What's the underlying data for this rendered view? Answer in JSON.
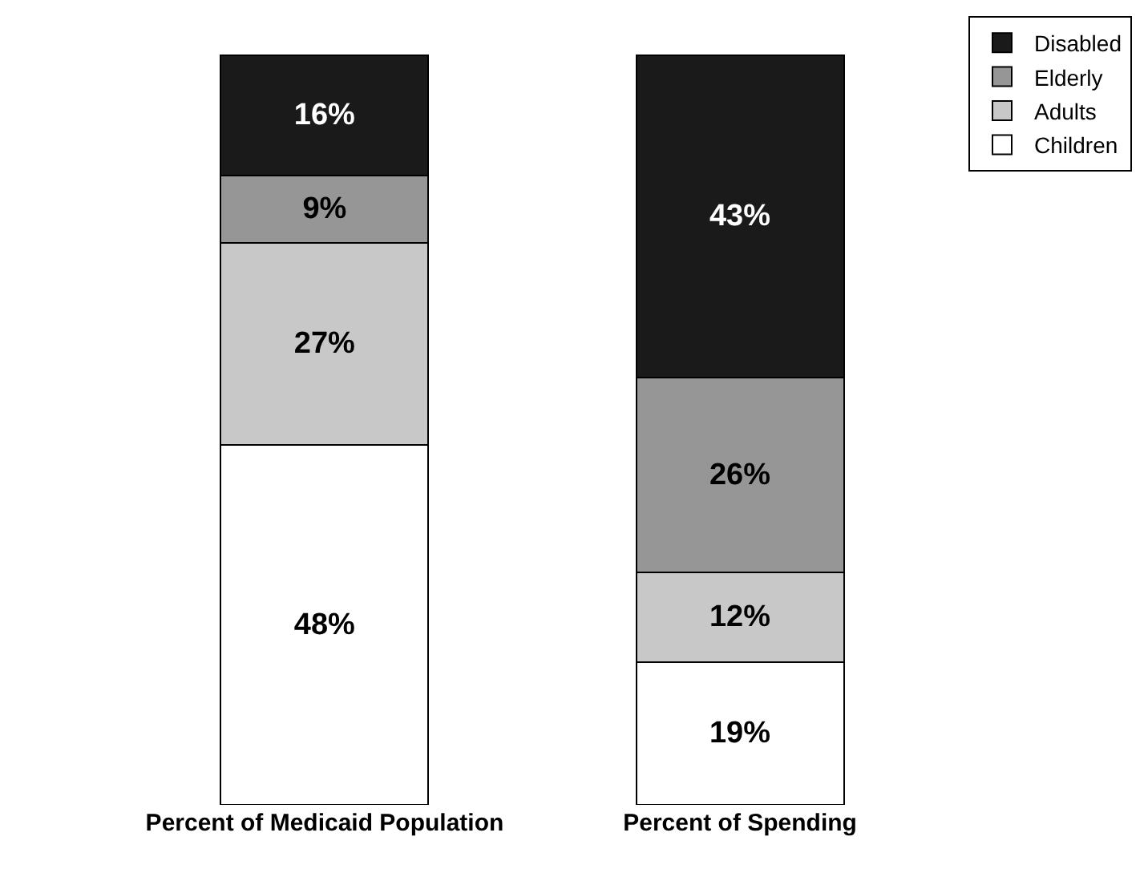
{
  "chart_data": {
    "type": "bar",
    "stacked": true,
    "legend": "top right",
    "categories": [
      "Percent of Medicaid Population",
      "Percent of Spending"
    ],
    "series": [
      {
        "name": "Children",
        "color": "#ffffff",
        "values": [
          48,
          19
        ],
        "value_labels": [
          "48%",
          "19%"
        ]
      },
      {
        "name": "Adults",
        "color": "#c8c8c8",
        "values": [
          27,
          12
        ],
        "value_labels": [
          "27%",
          "12%"
        ]
      },
      {
        "name": "Elderly",
        "color": "#969696",
        "values": [
          9,
          26
        ],
        "value_labels": [
          "9%",
          "26%"
        ]
      },
      {
        "name": "Disabled",
        "color": "#1a1a1a",
        "values": [
          16,
          43
        ],
        "value_labels": [
          "16%",
          "43%"
        ]
      }
    ]
  }
}
